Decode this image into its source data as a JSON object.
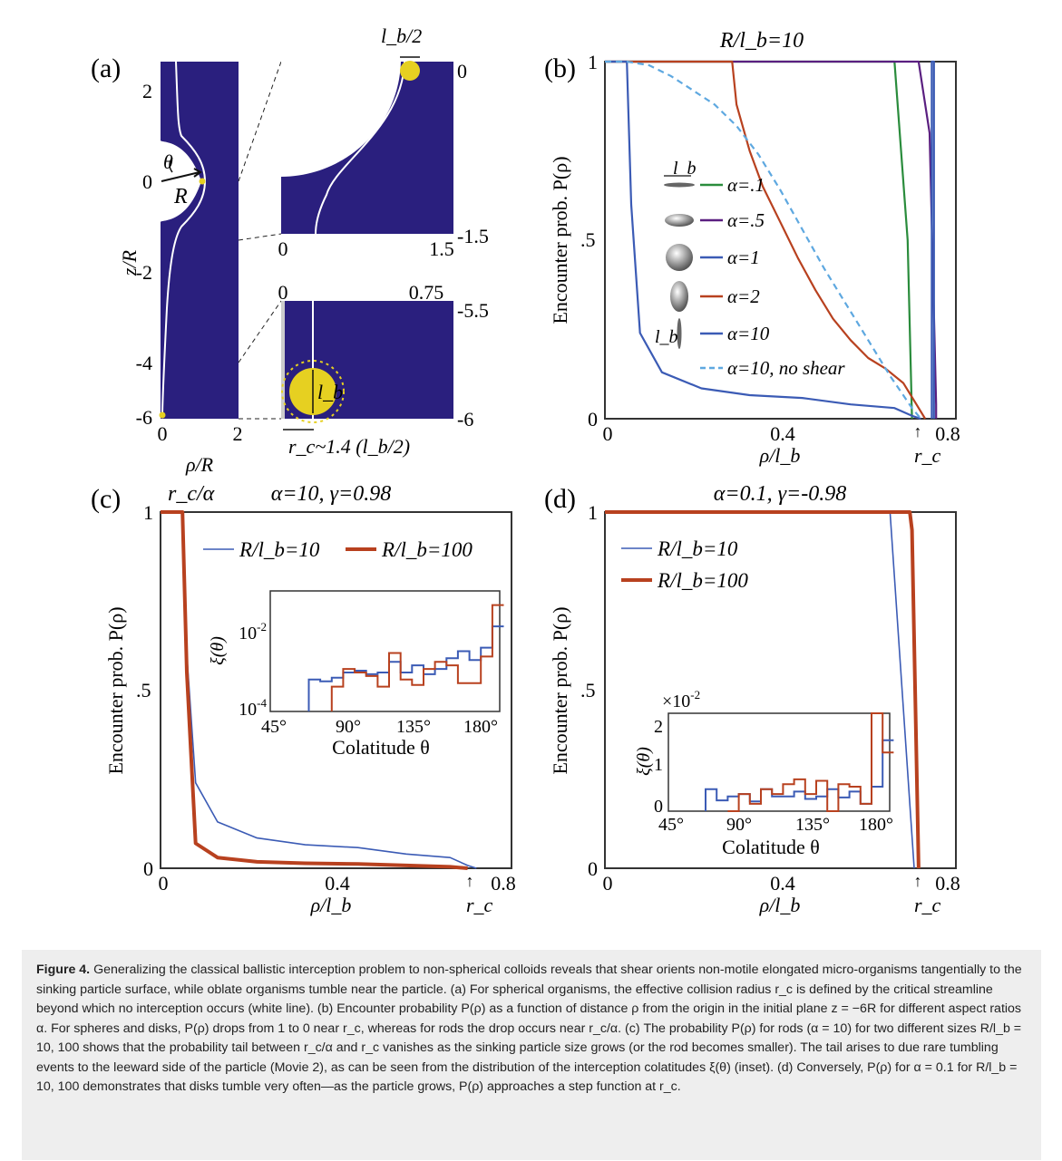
{
  "panel_a": {
    "label": "(a)",
    "y_ticks": [
      "2",
      "0",
      "-2",
      "-4",
      "-6"
    ],
    "x_ticks": [
      "0",
      "2"
    ],
    "y_label": "z/R",
    "x_label": "ρ/R",
    "theta_label": "θ",
    "R_label": "R",
    "inset_top": {
      "top_label": "l_b/2",
      "right_top": "0",
      "right_bottom": "-1.5",
      "bottom_left": "0",
      "bottom_right": "1.5"
    },
    "inset_bottom": {
      "top_left": "0",
      "top_right": "0.75",
      "right_top": "-5.5",
      "right_bottom": "-6",
      "lb_label": "l_b",
      "rc_label": "r_c~1.4 (l_b/2)"
    },
    "colors": {
      "fluid": "#2a1f7e",
      "particle": "#e6d021",
      "streamline": "#ffffff"
    }
  },
  "panel_b": {
    "label": "(b)",
    "title": "R/l_b=10",
    "ylabel": "Encounter prob. P(ρ)",
    "xlabel": "ρ/l_b",
    "rc_label": "r_c",
    "legend_lb": "l_b"
  },
  "panel_c": {
    "label": "(c)",
    "title": "α=10, γ=0.98",
    "rc_alpha_label": "r_c/α",
    "ylabel": "Encounter prob. P(ρ)",
    "xlabel": "ρ/l_b",
    "rc_label": "r_c",
    "inset_ylabel": "ξ(θ)",
    "inset_xlabel": "Colatitude θ"
  },
  "panel_d": {
    "label": "(d)",
    "title": "α=0.1, γ=-0.98",
    "ylabel": "Encounter prob. P(ρ)",
    "xlabel": "ρ/l_b",
    "rc_label": "r_c",
    "inset_ylabel": "ξ(θ)",
    "inset_xlabel": "Colatitude θ",
    "inset_scale": "×10⁻²"
  },
  "chart_data": [
    {
      "type": "line",
      "panel": "b",
      "xlim": [
        0,
        0.8
      ],
      "ylim": [
        0,
        1
      ],
      "x_ticks": [
        "0",
        "0.4",
        "0.8"
      ],
      "y_ticks": [
        "0",
        ".5",
        "1"
      ],
      "series": [
        {
          "name": "α=.1",
          "color": "#2a8c3c",
          "dash": false,
          "x": [
            0,
            0.66,
            0.69,
            0.7
          ],
          "y": [
            1,
            1,
            0.5,
            0
          ]
        },
        {
          "name": "α=.5",
          "color": "#5a1f80",
          "dash": false,
          "x": [
            0,
            0.715,
            0.74,
            0.755,
            0.755
          ],
          "y": [
            1,
            1,
            0.8,
            0.04,
            0
          ]
        },
        {
          "name": "α=1",
          "color": "#3b5bb5",
          "dash": false,
          "x": [
            0.745,
            0.745,
            0.75,
            0.75
          ],
          "y": [
            0,
            1,
            1,
            0
          ]
        },
        {
          "name": "α=2",
          "color": "#b8411f",
          "dash": false,
          "x": [
            0,
            0.29,
            0.3,
            0.33,
            0.36,
            0.4,
            0.44,
            0.48,
            0.52,
            0.56,
            0.6,
            0.64,
            0.68,
            0.71,
            0.73
          ],
          "y": [
            1,
            1,
            0.88,
            0.75,
            0.65,
            0.55,
            0.45,
            0.36,
            0.28,
            0.22,
            0.17,
            0.14,
            0.1,
            0.04,
            0
          ]
        },
        {
          "name": "α=10",
          "color": "#3b5bb5",
          "dash": false,
          "x": [
            0,
            0.05,
            0.06,
            0.08,
            0.13,
            0.22,
            0.33,
            0.45,
            0.56,
            0.66,
            0.7,
            0.72
          ],
          "y": [
            1,
            1,
            0.6,
            0.24,
            0.13,
            0.085,
            0.066,
            0.058,
            0.04,
            0.03,
            0.008,
            0
          ]
        },
        {
          "name": "α=10, no shear",
          "color": "#5ea8e0",
          "dash": true,
          "x": [
            0,
            0.05,
            0.1,
            0.15,
            0.2,
            0.25,
            0.3,
            0.35,
            0.4,
            0.45,
            0.5,
            0.55,
            0.6,
            0.65,
            0.7,
            0.72
          ],
          "y": [
            1,
            1,
            0.99,
            0.96,
            0.92,
            0.88,
            0.82,
            0.74,
            0.64,
            0.53,
            0.42,
            0.32,
            0.22,
            0.12,
            0.03,
            0
          ]
        }
      ]
    },
    {
      "type": "line",
      "panel": "c",
      "xlim": [
        0,
        0.8
      ],
      "ylim": [
        0,
        1
      ],
      "x_ticks": [
        "0",
        "0.4",
        "0.8"
      ],
      "y_ticks": [
        "0",
        ".5",
        "1"
      ],
      "series": [
        {
          "name": "R/l_b=10",
          "color": "#3b5bb5",
          "width": 1.6,
          "x": [
            0,
            0.05,
            0.06,
            0.08,
            0.13,
            0.22,
            0.33,
            0.45,
            0.56,
            0.66,
            0.7,
            0.72
          ],
          "y": [
            1,
            1,
            0.6,
            0.24,
            0.13,
            0.085,
            0.066,
            0.058,
            0.04,
            0.03,
            0.008,
            0
          ]
        },
        {
          "name": "R/l_b=100",
          "color": "#b8411f",
          "width": 4,
          "x": [
            0,
            0.05,
            0.06,
            0.08,
            0.13,
            0.22,
            0.33,
            0.45,
            0.56,
            0.66,
            0.7
          ],
          "y": [
            1,
            1,
            0.55,
            0.07,
            0.03,
            0.018,
            0.014,
            0.012,
            0.008,
            0.004,
            0
          ]
        }
      ],
      "inset": {
        "type": "line",
        "xlim": [
          45,
          185
        ],
        "ylim_log10": [
          -4,
          -0.6
        ],
        "x_ticks": [
          "45°",
          "90°",
          "135°",
          "180°"
        ],
        "y_ticks": [
          "10^-4",
          "10^-2"
        ],
        "series": [
          {
            "name": "R/l_b=10",
            "color": "#3b5bb5",
            "theta": [
              72,
              79,
              86,
              93,
              100,
              107,
              114,
              121,
              128,
              135,
              142,
              149,
              156,
              163,
              170,
              177,
              184
            ],
            "log10_xi": [
              -3.1,
              -3.15,
              -3.05,
              -2.9,
              -2.85,
              -2.95,
              -2.9,
              -2.6,
              -2.9,
              -2.7,
              -2.95,
              -2.8,
              -2.5,
              -2.3,
              -2.55,
              -2.2,
              -1.6
            ]
          },
          {
            "name": "R/l_b=100",
            "color": "#b8411f",
            "theta": [
              86,
              93,
              100,
              107,
              114,
              121,
              128,
              135,
              142,
              149,
              156,
              163,
              170,
              177,
              184
            ],
            "log10_xi": [
              -3.3,
              -2.8,
              -2.9,
              -3.0,
              -3.3,
              -2.35,
              -3.1,
              -3.25,
              -2.8,
              -2.6,
              -2.7,
              -3.2,
              -3.2,
              -2.45,
              -1.0
            ]
          }
        ]
      }
    },
    {
      "type": "line",
      "panel": "d",
      "xlim": [
        0,
        0.8
      ],
      "ylim": [
        0,
        1
      ],
      "x_ticks": [
        "0",
        "0.4",
        "0.8"
      ],
      "y_ticks": [
        "0",
        ".5",
        "1"
      ],
      "series": [
        {
          "name": "R/l_b=10",
          "color": "#3b5bb5",
          "width": 1.6,
          "x": [
            0,
            0.65,
            0.705
          ],
          "y": [
            1,
            1,
            0
          ]
        },
        {
          "name": "R/l_b=100",
          "color": "#b8411f",
          "width": 4,
          "x": [
            0,
            0.695,
            0.7,
            0.715
          ],
          "y": [
            1,
            1,
            0.95,
            0
          ]
        }
      ],
      "inset": {
        "type": "line",
        "xlim": [
          45,
          185
        ],
        "ylim": [
          0,
          2
        ],
        "x_ticks": [
          "45°",
          "90°",
          "135°",
          "180°"
        ],
        "y_ticks": [
          "0",
          "1",
          "2"
        ],
        "scale": "×10^-2",
        "series": [
          {
            "name": "R/l_b=10",
            "color": "#3b5bb5",
            "theta": [
              72,
              79,
              86,
              93,
              100,
              107,
              114,
              121,
              128,
              135,
              142,
              149,
              156,
              163,
              170,
              177,
              184
            ],
            "xi": [
              0.45,
              0.22,
              0.3,
              0.35,
              0.2,
              0.45,
              0.3,
              0.3,
              0.4,
              0.25,
              0.3,
              0.45,
              0.28,
              0.4,
              0.15,
              0.5,
              1.45
            ]
          },
          {
            "name": "R/l_b=100",
            "color": "#b8411f",
            "theta": [
              86,
              93,
              100,
              107,
              114,
              121,
              128,
              135,
              142,
              149,
              156,
              163,
              170,
              177,
              184
            ],
            "xi": [
              0.0,
              0.35,
              0.15,
              0.45,
              0.35,
              0.55,
              0.65,
              0.35,
              0.62,
              0.0,
              0.55,
              0.5,
              0.15,
              2.0,
              1.2
            ]
          }
        ]
      }
    }
  ],
  "caption": {
    "lead": "Figure 4.",
    "text": " Generalizing the classical ballistic interception problem to non-spherical colloids reveals that shear orients non-motile elongated micro-organisms tangentially to the sinking particle surface, while oblate organisms tumble near the particle. (a) For spherical organisms, the effective collision radius r_c is defined by the critical streamline beyond which no interception occurs (white line). (b) Encounter probability P(ρ) as a function of distance ρ from the origin in the initial plane z = −6R for different aspect ratios α. For spheres and disks, P(ρ) drops from 1 to 0 near r_c, whereas for rods the drop occurs near r_c/α. (c) The probability P(ρ) for rods (α = 10) for two different sizes R/l_b = 10, 100 shows that the probability tail between r_c/α and r_c vanishes as the sinking particle size grows (or the rod becomes smaller). The tail arises to due rare tumbling events to the leeward side of the particle (Movie 2), as can be seen from the distribution of the interception colatitudes ξ(θ) (inset). (d) Conversely, P(ρ) for α = 0.1 for R/l_b = 10, 100 demonstrates that disks tumble very often—as the particle grows, P(ρ) approaches a step function at r_c."
  }
}
